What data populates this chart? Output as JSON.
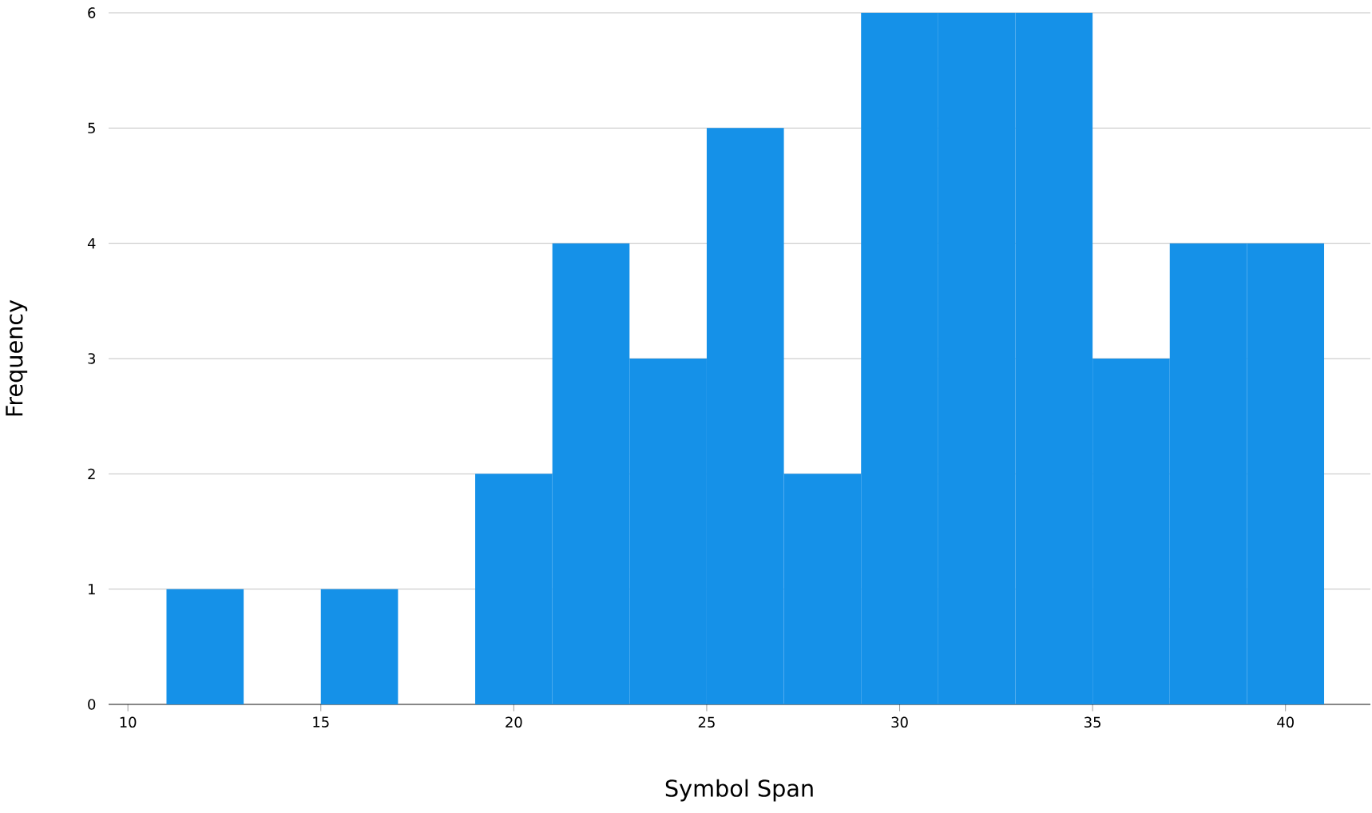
{
  "chart_data": {
    "type": "histogram",
    "xlabel": "Symbol Span",
    "ylabel": "Frequency",
    "color": "#1591e8",
    "bins": [
      11,
      13,
      15,
      17,
      19,
      21,
      23,
      25,
      27,
      29,
      31,
      33,
      35,
      37,
      39,
      41
    ],
    "values": [
      1,
      0,
      1,
      0,
      2,
      4,
      3,
      5,
      2,
      6,
      6,
      6,
      3,
      4,
      4
    ],
    "xlim": [
      9.5,
      42.2
    ],
    "ylim": [
      0,
      6
    ],
    "xticks": [
      10,
      15,
      20,
      25,
      30,
      35,
      40
    ],
    "yticks": [
      0,
      1,
      2,
      3,
      4,
      5,
      6
    ],
    "grid": "y"
  }
}
